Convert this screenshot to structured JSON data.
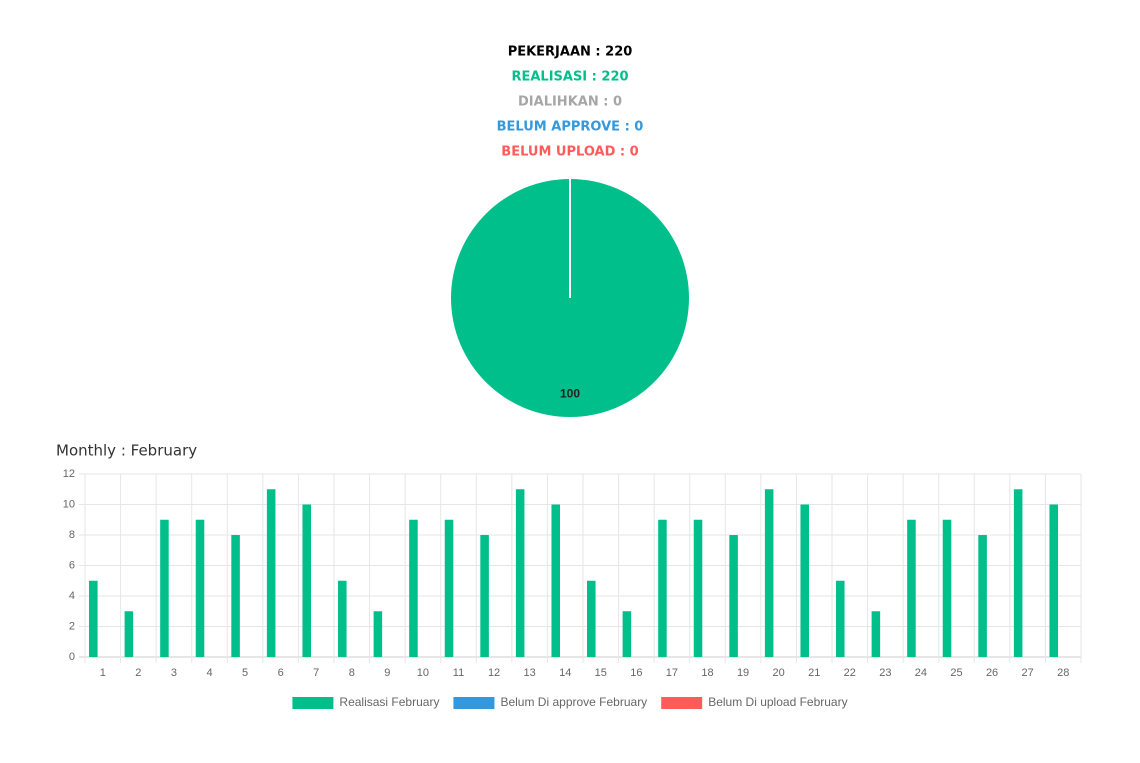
{
  "summary": [
    {
      "text": "PEKERJAAN : 220",
      "color": "#000000"
    },
    {
      "text": "REALISASI : 220",
      "color": "#00bf8a"
    },
    {
      "text": "DIALIHKAN : 0",
      "color": "#a6a6a6"
    },
    {
      "text": "BELUM APPROVE : 0",
      "color": "#3498db"
    },
    {
      "text": "BELUM UPLOAD : 0",
      "color": "#ff5b5b"
    }
  ],
  "chart_data": [
    {
      "type": "pie",
      "values": [
        100
      ],
      "colors": [
        "#00bf8a"
      ]
    },
    {
      "type": "bar",
      "title": "Monthly : February",
      "categories": [
        "1",
        "2",
        "3",
        "4",
        "5",
        "6",
        "7",
        "8",
        "9",
        "10",
        "11",
        "12",
        "13",
        "14",
        "15",
        "16",
        "17",
        "18",
        "19",
        "20",
        "21",
        "22",
        "23",
        "24",
        "25",
        "26",
        "27",
        "28"
      ],
      "series": [
        {
          "name": "Realisasi February",
          "color": "#00bf8a",
          "values": [
            5,
            3,
            9,
            9,
            8,
            11,
            10,
            5,
            3,
            9,
            9,
            8,
            11,
            10,
            5,
            3,
            9,
            9,
            8,
            11,
            10,
            5,
            3,
            9,
            9,
            8,
            11,
            10
          ]
        },
        {
          "name": "Belum Di approve February",
          "color": "#3498db",
          "values": [
            0,
            0,
            0,
            0,
            0,
            0,
            0,
            0,
            0,
            0,
            0,
            0,
            0,
            0,
            0,
            0,
            0,
            0,
            0,
            0,
            0,
            0,
            0,
            0,
            0,
            0,
            0,
            0
          ]
        },
        {
          "name": "Belum Di upload February",
          "color": "#ff5b5b",
          "values": [
            0,
            0,
            0,
            0,
            0,
            0,
            0,
            0,
            0,
            0,
            0,
            0,
            0,
            0,
            0,
            0,
            0,
            0,
            0,
            0,
            0,
            0,
            0,
            0,
            0,
            0,
            0,
            0
          ]
        }
      ],
      "ylim": [
        0,
        12
      ],
      "yticks": [
        0,
        2,
        4,
        6,
        8,
        10,
        12
      ],
      "grid": true,
      "legend": "bottom"
    }
  ]
}
